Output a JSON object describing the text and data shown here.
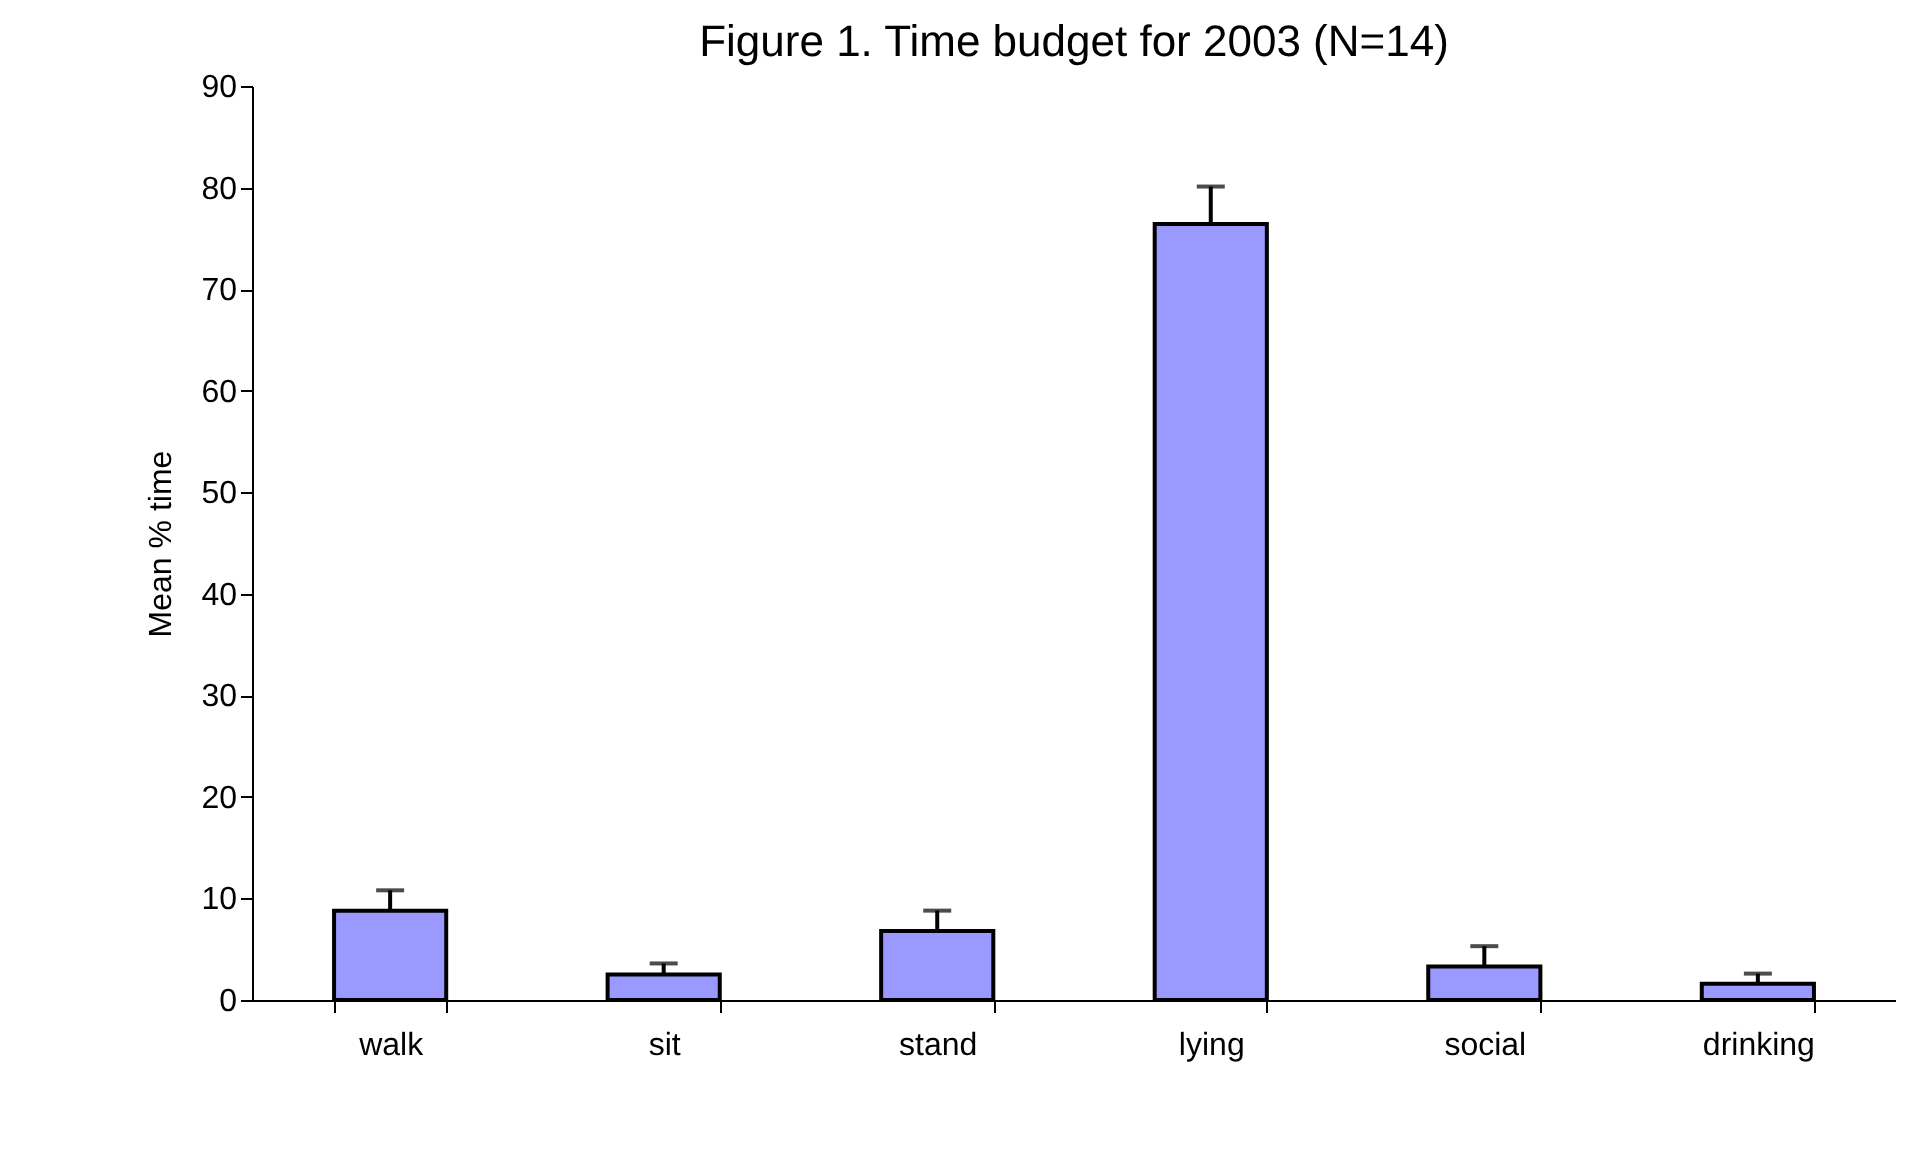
{
  "chart_data": {
    "type": "bar",
    "title": "Figure 1. Time budget for 2003 (N=14)",
    "ylabel": "Mean % time",
    "categories": [
      "walk",
      "sit",
      "stand",
      "lying",
      "social",
      "drinking"
    ],
    "values": [
      8.8,
      2.5,
      6.8,
      76.4,
      3.3,
      1.6
    ],
    "errors": [
      [
        8.8,
        10.8
      ],
      [
        2.5,
        3.6
      ],
      [
        6.8,
        8.8
      ],
      [
        76.4,
        80.1
      ],
      [
        3.3,
        5.3
      ],
      [
        1.6,
        2.6
      ]
    ],
    "color": "#9999ff",
    "ylim": [
      0,
      90
    ],
    "yticks": [
      0,
      10,
      20,
      30,
      40,
      50,
      60,
      70,
      80,
      90
    ],
    "grid": false
  }
}
